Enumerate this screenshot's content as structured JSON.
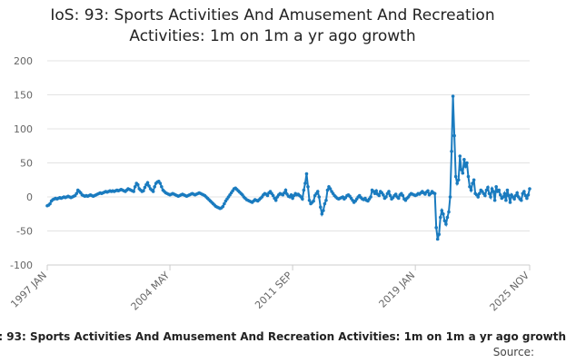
{
  "chart_data": {
    "type": "line",
    "title": "IoS: 93: Sports Activities And Amusement And Recreation Activities: 1m on 1m a yr ago growth",
    "source": "Source:",
    "categories": [
      "1997 JAN",
      null,
      null,
      null,
      null,
      null,
      null,
      null,
      null,
      null,
      null,
      null,
      null,
      null,
      null,
      null,
      null,
      null,
      null,
      null,
      null,
      null,
      null,
      null,
      null,
      null,
      null,
      null,
      null,
      null,
      null,
      null,
      null,
      null,
      null,
      null,
      null,
      null,
      null,
      null,
      null,
      null,
      null,
      null,
      null,
      null,
      null,
      null,
      null,
      null,
      null,
      null,
      null,
      null,
      null,
      null,
      null,
      null,
      null,
      null,
      null,
      null,
      null,
      null,
      null,
      null,
      null,
      null,
      null,
      null,
      null,
      null,
      null,
      null,
      null,
      null,
      null,
      null,
      null,
      null,
      null,
      null,
      null,
      null,
      null,
      null,
      null,
      null,
      "2004 MAY",
      null,
      null,
      null,
      null,
      null,
      null,
      null,
      null,
      null,
      null,
      null,
      null,
      null,
      null,
      null,
      null,
      null,
      null,
      null,
      null,
      null,
      null,
      null,
      null,
      null,
      null,
      null,
      null,
      null,
      null,
      null,
      null,
      null,
      null,
      null,
      null,
      null,
      null,
      null,
      null,
      null,
      null,
      null,
      null,
      null,
      null,
      null,
      null,
      null,
      null,
      null,
      null,
      null,
      null,
      null,
      null,
      null,
      null,
      null,
      null,
      null,
      null,
      null,
      null,
      null,
      null,
      null,
      null,
      null,
      null,
      null,
      null,
      null,
      null,
      null,
      null,
      null,
      null,
      null,
      null,
      null,
      null,
      null,
      null,
      null,
      null,
      null,
      "2011 SEP",
      null,
      null,
      null,
      null,
      null,
      null,
      null,
      null,
      null,
      null,
      null,
      null,
      null,
      null,
      null,
      null,
      null,
      null,
      null,
      null,
      null,
      null,
      null,
      null,
      null,
      null,
      null,
      null,
      null,
      null,
      null,
      null,
      null,
      null,
      null,
      null,
      null,
      null,
      null,
      null,
      null,
      null,
      null,
      null,
      null,
      null,
      null,
      null,
      null,
      null,
      null,
      null,
      null,
      null,
      null,
      null,
      null,
      null,
      null,
      null,
      null,
      null,
      null,
      null,
      null,
      null,
      null,
      null,
      null,
      null,
      null,
      null,
      null,
      null,
      null,
      null,
      null,
      null,
      null,
      null,
      null,
      null,
      null,
      null,
      null,
      null,
      null,
      "2019 JAN",
      null,
      null,
      null,
      null,
      null,
      null,
      null,
      null,
      null,
      null,
      null,
      null,
      null,
      null,
      null,
      null,
      null,
      null,
      null,
      null,
      null,
      null,
      null,
      null,
      null,
      null,
      null,
      null,
      null,
      null,
      null,
      null,
      null,
      null,
      null,
      null,
      null,
      null,
      null,
      null,
      null,
      null,
      null,
      null,
      null,
      null,
      null,
      null,
      null,
      null,
      null,
      null,
      null,
      null,
      null,
      null,
      null,
      null,
      null,
      null,
      null,
      null,
      null,
      null,
      null,
      null,
      null,
      null,
      null,
      null,
      null,
      null,
      null,
      null,
      null,
      null,
      null,
      null,
      null,
      null,
      null,
      "2025 NOV"
    ],
    "series": [
      {
        "name": "IoS: 93: Sports Activities And Amusement And Recreation Activities: 1m on 1m a yr ago growth",
        "color": "#1a7bbf",
        "values": [
          -13,
          -12,
          -10,
          -6,
          -4,
          -3,
          -2,
          -3,
          -2,
          -1,
          -2,
          -1,
          0,
          -1,
          0,
          1,
          0,
          -1,
          0,
          1,
          2,
          5,
          10,
          8,
          6,
          3,
          2,
          1,
          2,
          1,
          2,
          3,
          2,
          1,
          2,
          3,
          4,
          5,
          6,
          5,
          6,
          7,
          8,
          7,
          8,
          9,
          8,
          9,
          8,
          9,
          10,
          9,
          10,
          11,
          10,
          9,
          8,
          10,
          12,
          11,
          10,
          9,
          8,
          15,
          20,
          18,
          12,
          10,
          8,
          9,
          14,
          18,
          21,
          16,
          12,
          10,
          8,
          15,
          20,
          22,
          23,
          20,
          15,
          10,
          8,
          6,
          5,
          4,
          3,
          4,
          5,
          4,
          3,
          2,
          1,
          2,
          3,
          4,
          3,
          2,
          1,
          2,
          3,
          4,
          5,
          4,
          3,
          4,
          5,
          6,
          5,
          4,
          3,
          2,
          0,
          -2,
          -4,
          -6,
          -8,
          -10,
          -12,
          -14,
          -15,
          -16,
          -17,
          -16,
          -14,
          -10,
          -6,
          -3,
          0,
          3,
          6,
          9,
          12,
          13,
          11,
          9,
          7,
          5,
          3,
          0,
          -2,
          -4,
          -5,
          -6,
          -7,
          -8,
          -6,
          -4,
          -5,
          -6,
          -4,
          -2,
          0,
          3,
          5,
          4,
          2,
          6,
          8,
          5,
          2,
          -2,
          -5,
          0,
          3,
          5,
          4,
          3,
          6,
          10,
          4,
          1,
          0,
          3,
          -2,
          2,
          5,
          3,
          4,
          2,
          0,
          -3,
          10,
          20,
          34,
          15,
          -5,
          -10,
          -8,
          -6,
          2,
          5,
          8,
          0,
          -15,
          -25,
          -20,
          -10,
          -5,
          10,
          15,
          12,
          8,
          5,
          2,
          0,
          -2,
          -3,
          -2,
          -1,
          0,
          -3,
          -1,
          2,
          3,
          1,
          -2,
          -5,
          -8,
          -6,
          -3,
          0,
          2,
          -1,
          -3,
          -4,
          -2,
          -5,
          -6,
          -3,
          0,
          10,
          8,
          5,
          9,
          4,
          2,
          8,
          6,
          3,
          -2,
          0,
          5,
          8,
          2,
          -3,
          -1,
          2,
          4,
          0,
          -2,
          3,
          5,
          2,
          -3,
          -5,
          -2,
          0,
          3,
          5,
          4,
          3,
          2,
          3,
          5,
          4,
          6,
          8,
          6,
          4,
          7,
          9,
          3,
          5,
          8,
          6,
          5,
          -45,
          -62,
          -55,
          -30,
          -20,
          -25,
          -35,
          -40,
          -30,
          -22,
          0,
          67,
          148,
          90,
          30,
          20,
          25,
          60,
          40,
          35,
          55,
          45,
          50,
          30,
          15,
          10,
          20,
          25,
          5,
          3,
          0,
          5,
          10,
          8,
          5,
          2,
          10,
          14,
          5,
          0,
          12,
          8,
          -5,
          15,
          8,
          10,
          3,
          -2,
          0,
          5,
          -5,
          10,
          2,
          -8,
          3,
          0,
          -3,
          2,
          6,
          0,
          -3,
          -5,
          5,
          8,
          2,
          -2,
          3,
          12
        ]
      }
    ],
    "ylim": [
      -100,
      200
    ],
    "yticks": [
      -100,
      -50,
      0,
      50,
      100,
      150,
      200
    ],
    "grid": true
  }
}
